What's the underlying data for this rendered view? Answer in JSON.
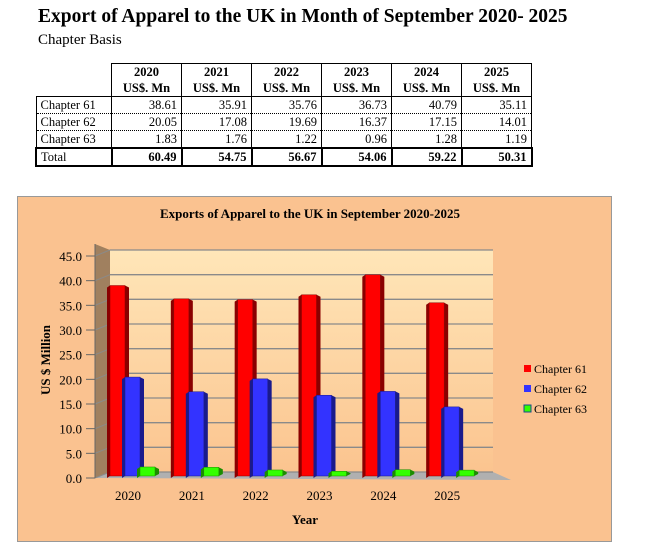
{
  "title": "Export of Apparel to the UK in Month of September 2020- 2025",
  "subtitle": "Chapter Basis",
  "table": {
    "years": [
      "2020",
      "2021",
      "2022",
      "2023",
      "2024",
      "2025"
    ],
    "unit": "US$. Mn",
    "rows": [
      {
        "label": "Chapter 61",
        "values": [
          "38.61",
          "35.91",
          "35.76",
          "36.73",
          "40.79",
          "35.11"
        ]
      },
      {
        "label": "Chapter 62",
        "values": [
          "20.05",
          "17.08",
          "19.69",
          "16.37",
          "17.15",
          "14.01"
        ]
      },
      {
        "label": "Chapter 63",
        "values": [
          "1.83",
          "1.76",
          "1.22",
          "0.96",
          "1.28",
          "1.19"
        ]
      }
    ],
    "total": {
      "label": "Total",
      "values": [
        "60.49",
        "54.75",
        "56.67",
        "54.06",
        "59.22",
        "50.31"
      ]
    }
  },
  "chart_data": {
    "type": "bar",
    "title": "Exports of Apparel to the UK in September 2020-2025",
    "xlabel": "Year",
    "ylabel": "US $ Million",
    "categories": [
      "2020",
      "2021",
      "2022",
      "2023",
      "2024",
      "2025"
    ],
    "ylim": [
      0,
      45
    ],
    "yticks": [
      "0.0",
      "5.0",
      "10.0",
      "15.0",
      "20.0",
      "25.0",
      "30.0",
      "35.0",
      "40.0",
      "45.0"
    ],
    "series": [
      {
        "name": "Chapter 61",
        "color": "#ff0000",
        "dark": "#8a0000",
        "values": [
          38.61,
          35.91,
          35.76,
          36.73,
          40.79,
          35.11
        ]
      },
      {
        "name": "Chapter 62",
        "color": "#3333ff",
        "dark": "#1a1a8c",
        "values": [
          20.05,
          17.08,
          19.69,
          16.37,
          17.15,
          14.01
        ]
      },
      {
        "name": "Chapter 63",
        "color": "#33ff00",
        "dark": "#1c8c00",
        "values": [
          1.83,
          1.76,
          1.22,
          0.96,
          1.28,
          1.19
        ]
      }
    ],
    "legend": "right",
    "grid": true
  }
}
